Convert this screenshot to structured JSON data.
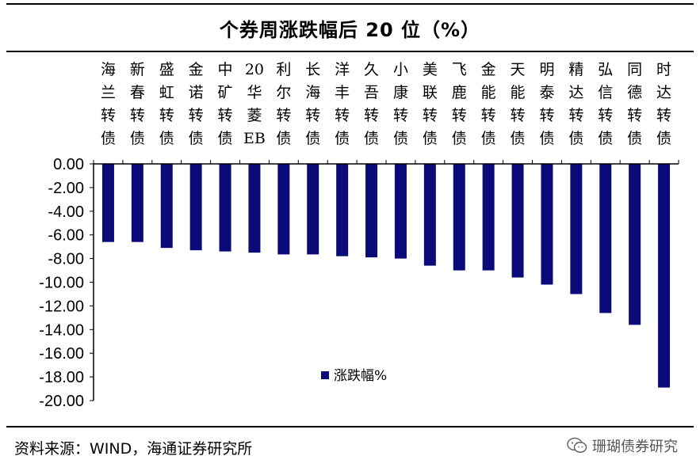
{
  "header": {
    "title": "个券周涨跌幅后 20 位（%）"
  },
  "footer": {
    "source": "资料来源：WIND，海通证券研究所",
    "watermark": "珊瑚债券研究",
    "watermark_icon": "wechat-icon"
  },
  "colors": {
    "bar": "#0a0a78",
    "axis": "#000000"
  },
  "chart_data": {
    "type": "bar",
    "title": "个券周涨跌幅后 20 位（%）",
    "categories": [
      "海兰转债",
      "新春转债",
      "盛虹转债",
      "金诺转债",
      "中矿转债",
      "20华菱EB",
      "利尔转债",
      "长海转债",
      "洋丰转债",
      "久吾转债",
      "小康转债",
      "美联转债",
      "飞鹿转债",
      "金能转债",
      "天能转债",
      "明泰转债",
      "精达转债",
      "弘信转债",
      "同德转债",
      "时达转债"
    ],
    "category_lines": [
      [
        "海",
        "兰",
        "转",
        "债"
      ],
      [
        "新",
        "春",
        "转",
        "债"
      ],
      [
        "盛",
        "虹",
        "转",
        "债"
      ],
      [
        "金",
        "诺",
        "转",
        "债"
      ],
      [
        "中",
        "矿",
        "转",
        "债"
      ],
      [
        "20",
        "华",
        "菱",
        "EB"
      ],
      [
        "利",
        "尔",
        "转",
        "债"
      ],
      [
        "长",
        "海",
        "转",
        "债"
      ],
      [
        "洋",
        "丰",
        "转",
        "债"
      ],
      [
        "久",
        "吾",
        "转",
        "债"
      ],
      [
        "小",
        "康",
        "转",
        "债"
      ],
      [
        "美",
        "联",
        "转",
        "债"
      ],
      [
        "飞",
        "鹿",
        "转",
        "债"
      ],
      [
        "金",
        "能",
        "转",
        "债"
      ],
      [
        "天",
        "能",
        "转",
        "债"
      ],
      [
        "明",
        "泰",
        "转",
        "债"
      ],
      [
        "精",
        "达",
        "转",
        "债"
      ],
      [
        "弘",
        "信",
        "转",
        "债"
      ],
      [
        "同",
        "德",
        "转",
        "债"
      ],
      [
        "时",
        "达",
        "转",
        "债"
      ]
    ],
    "series": [
      {
        "name": "涨跌幅%",
        "values": [
          -6.6,
          -6.6,
          -7.1,
          -7.3,
          -7.4,
          -7.5,
          -7.65,
          -7.65,
          -7.8,
          -7.9,
          -8.0,
          -8.6,
          -9.0,
          -9.0,
          -9.6,
          -10.2,
          -11.0,
          -12.6,
          -13.6,
          -18.9
        ]
      }
    ],
    "yticks": [
      "0.00",
      "-2.00",
      "-4.00",
      "-6.00",
      "-8.00",
      "-10.00",
      "-12.00",
      "-14.00",
      "-16.00",
      "-18.00",
      "-20.00"
    ],
    "ylim": [
      -20,
      0
    ],
    "grid": false,
    "legend_position": "bottom-center-left"
  }
}
